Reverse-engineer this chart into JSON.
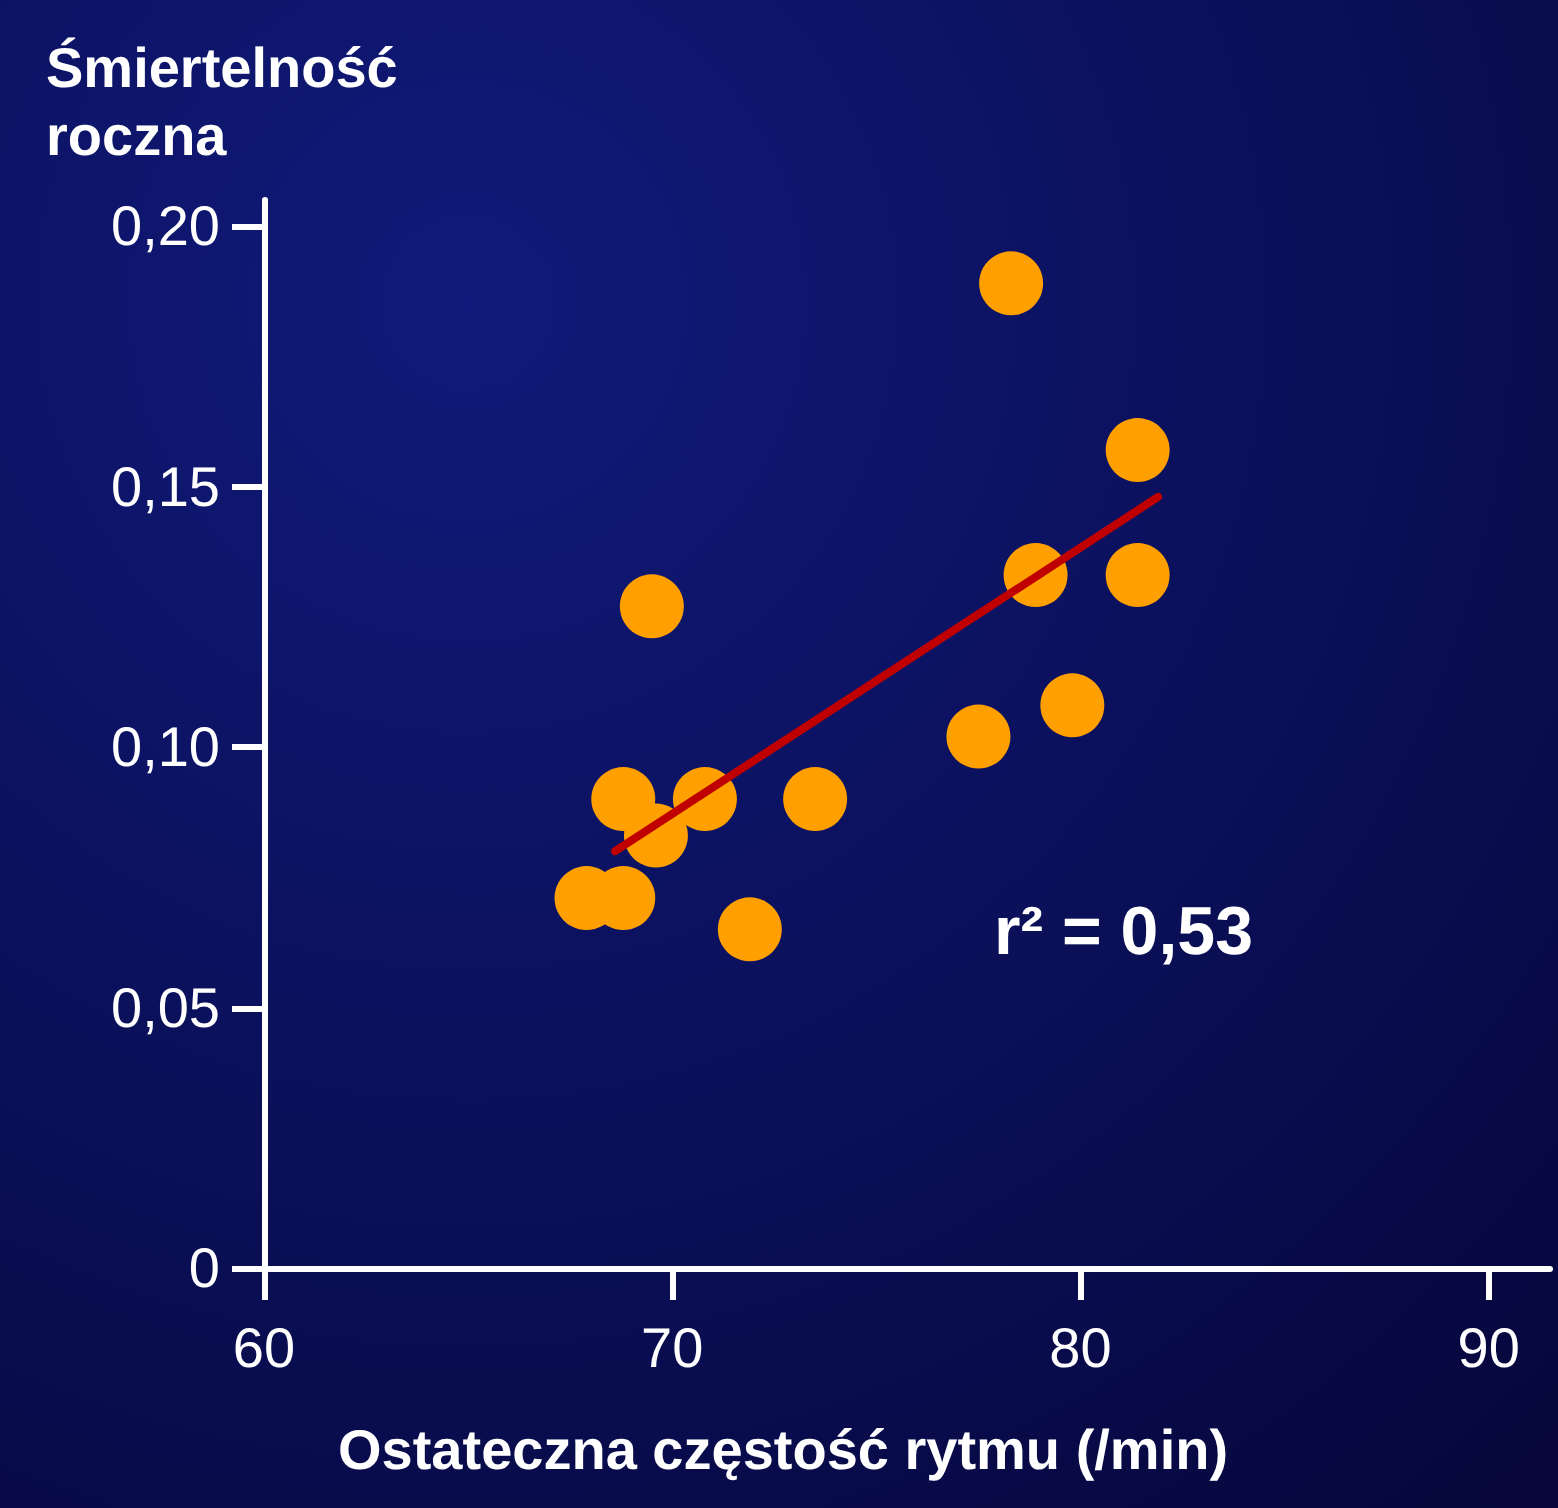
{
  "chart_data": {
    "type": "scatter",
    "ylabel": "Śmiertelność roczna",
    "xlabel": "Ostateczna częstość rytmu (/min)",
    "annotations": [
      "r² = 0,53"
    ],
    "series": [
      {
        "color": "#ffa000",
        "x": [
          78.3,
          81.4,
          78.9,
          81.4,
          69.5,
          79.8,
          77.5,
          68.8,
          70.8,
          73.5,
          69.6,
          67.9,
          68.8,
          71.9
        ],
        "values": [
          0.189,
          0.157,
          0.133,
          0.133,
          0.127,
          0.108,
          0.102,
          0.09,
          0.09,
          0.09,
          0.083,
          0.071,
          0.071,
          0.065
        ]
      },
      {
        "type": "line",
        "color": "#c00000",
        "x": [
          68.6,
          81.9
        ],
        "values": [
          0.08,
          0.148
        ]
      }
    ],
    "xlim": [
      60,
      91.5
    ],
    "xticks": [
      60,
      70,
      80,
      90
    ],
    "ylim": [
      0,
      0.205
    ],
    "yticks": [
      0,
      {
        "value": 0.05,
        "label": "0,05"
      },
      {
        "value": 0.1,
        "label": "0,10"
      },
      {
        "value": 0.15,
        "label": "0,15"
      },
      {
        "value": 0.2,
        "label": "0,20"
      }
    ],
    "grid": false,
    "line_style": "solid"
  }
}
